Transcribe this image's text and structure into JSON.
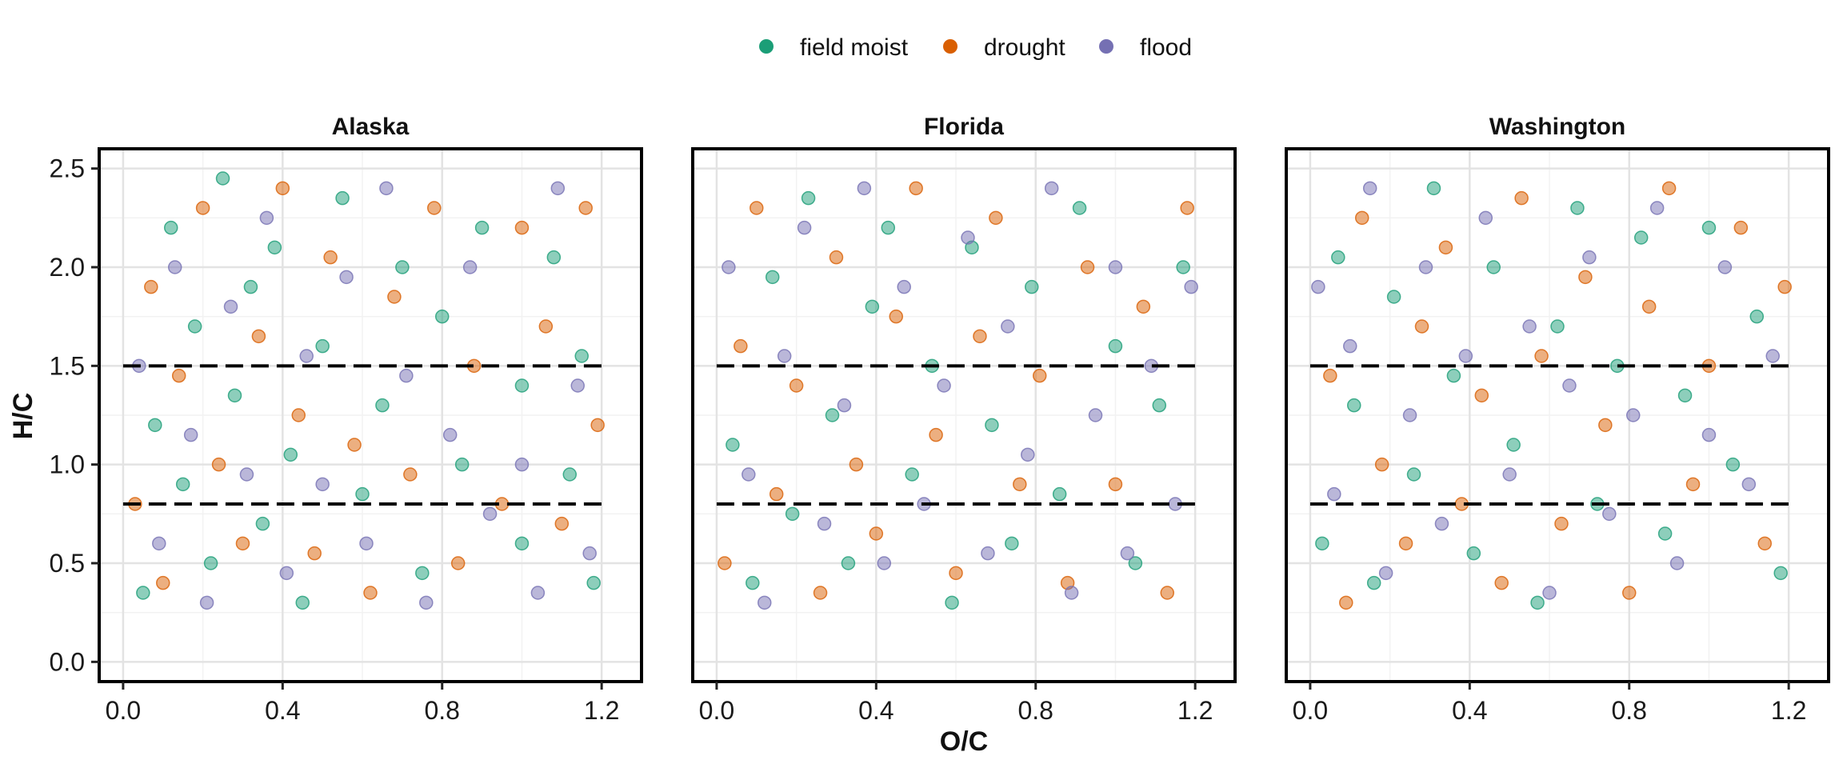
{
  "chart_data": {
    "type": "scatter",
    "xlabel": "O/C",
    "ylabel": "H/C",
    "xlim": [
      -0.06,
      1.3
    ],
    "ylim": [
      -0.1,
      2.6
    ],
    "x_ticks": [
      0.0,
      0.4,
      0.8,
      1.2
    ],
    "x_tick_labels": [
      "0.0",
      "0.4",
      "0.8",
      "1.2"
    ],
    "y_ticks": [
      0.0,
      0.5,
      1.0,
      1.5,
      2.0,
      2.5
    ],
    "y_tick_labels": [
      "0.0",
      "0.5",
      "1.0",
      "1.5",
      "2.0",
      "2.5"
    ],
    "grid": true,
    "legend_position": "top",
    "reference_lines": [
      {
        "y": 1.5,
        "x_range": [
          0.0,
          1.2
        ],
        "style": "dashed",
        "color": "#000000"
      },
      {
        "y": 0.8,
        "x_range": [
          0.0,
          1.2
        ],
        "style": "dashed",
        "color": "#000000"
      }
    ],
    "series": [
      {
        "name": "field moist",
        "color": "#1b9e77"
      },
      {
        "name": "drought",
        "color": "#d95f02"
      },
      {
        "name": "flood",
        "color": "#7570b3"
      }
    ],
    "panels": [
      {
        "title": "Alaska",
        "points": [
          [
            0.05,
            0.35,
            0
          ],
          [
            0.08,
            1.2,
            0
          ],
          [
            0.12,
            2.2,
            0
          ],
          [
            0.15,
            0.9,
            0
          ],
          [
            0.18,
            1.7,
            0
          ],
          [
            0.22,
            0.5,
            0
          ],
          [
            0.25,
            2.45,
            0
          ],
          [
            0.28,
            1.35,
            0
          ],
          [
            0.32,
            1.9,
            0
          ],
          [
            0.35,
            0.7,
            0
          ],
          [
            0.38,
            2.1,
            0
          ],
          [
            0.42,
            1.05,
            0
          ],
          [
            0.45,
            0.3,
            0
          ],
          [
            0.5,
            1.6,
            0
          ],
          [
            0.55,
            2.35,
            0
          ],
          [
            0.6,
            0.85,
            0
          ],
          [
            0.65,
            1.3,
            0
          ],
          [
            0.7,
            2.0,
            0
          ],
          [
            0.75,
            0.45,
            0
          ],
          [
            0.8,
            1.75,
            0
          ],
          [
            0.85,
            1.0,
            0
          ],
          [
            0.9,
            2.2,
            0
          ],
          [
            1.0,
            1.4,
            0
          ],
          [
            1.0,
            0.6,
            0
          ],
          [
            1.08,
            2.05,
            0
          ],
          [
            1.12,
            0.95,
            0
          ],
          [
            1.15,
            1.55,
            0
          ],
          [
            1.18,
            0.4,
            0
          ],
          [
            0.03,
            0.8,
            1
          ],
          [
            0.07,
            1.9,
            1
          ],
          [
            0.1,
            0.4,
            1
          ],
          [
            0.14,
            1.45,
            1
          ],
          [
            0.2,
            2.3,
            1
          ],
          [
            0.24,
            1.0,
            1
          ],
          [
            0.3,
            0.6,
            1
          ],
          [
            0.34,
            1.65,
            1
          ],
          [
            0.4,
            2.4,
            1
          ],
          [
            0.44,
            1.25,
            1
          ],
          [
            0.48,
            0.55,
            1
          ],
          [
            0.52,
            2.05,
            1
          ],
          [
            0.58,
            1.1,
            1
          ],
          [
            0.62,
            0.35,
            1
          ],
          [
            0.68,
            1.85,
            1
          ],
          [
            0.72,
            0.95,
            1
          ],
          [
            0.78,
            2.3,
            1
          ],
          [
            0.84,
            0.5,
            1
          ],
          [
            0.88,
            1.5,
            1
          ],
          [
            0.95,
            0.8,
            1
          ],
          [
            1.0,
            2.2,
            1
          ],
          [
            1.06,
            1.7,
            1
          ],
          [
            1.1,
            0.7,
            1
          ],
          [
            1.16,
            2.3,
            1
          ],
          [
            1.19,
            1.2,
            1
          ],
          [
            0.04,
            1.5,
            2
          ],
          [
            0.09,
            0.6,
            2
          ],
          [
            0.13,
            2.0,
            2
          ],
          [
            0.17,
            1.15,
            2
          ],
          [
            0.21,
            0.3,
            2
          ],
          [
            0.27,
            1.8,
            2
          ],
          [
            0.31,
            0.95,
            2
          ],
          [
            0.36,
            2.25,
            2
          ],
          [
            0.41,
            0.45,
            2
          ],
          [
            0.46,
            1.55,
            2
          ],
          [
            0.5,
            0.9,
            2
          ],
          [
            0.56,
            1.95,
            2
          ],
          [
            0.61,
            0.6,
            2
          ],
          [
            0.66,
            2.4,
            2
          ],
          [
            0.71,
            1.45,
            2
          ],
          [
            0.76,
            0.3,
            2
          ],
          [
            0.82,
            1.15,
            2
          ],
          [
            0.87,
            2.0,
            2
          ],
          [
            0.92,
            0.75,
            2
          ],
          [
            1.0,
            1.0,
            2
          ],
          [
            1.04,
            0.35,
            2
          ],
          [
            1.09,
            2.4,
            2
          ],
          [
            1.14,
            1.4,
            2
          ],
          [
            1.17,
            0.55,
            2
          ]
        ]
      },
      {
        "title": "Florida",
        "points": [
          [
            0.04,
            1.1,
            0
          ],
          [
            0.09,
            0.4,
            0
          ],
          [
            0.14,
            1.95,
            0
          ],
          [
            0.19,
            0.75,
            0
          ],
          [
            0.23,
            2.35,
            0
          ],
          [
            0.29,
            1.25,
            0
          ],
          [
            0.33,
            0.5,
            0
          ],
          [
            0.39,
            1.8,
            0
          ],
          [
            0.43,
            2.2,
            0
          ],
          [
            0.49,
            0.95,
            0
          ],
          [
            0.54,
            1.5,
            0
          ],
          [
            0.59,
            0.3,
            0
          ],
          [
            0.64,
            2.1,
            0
          ],
          [
            0.69,
            1.2,
            0
          ],
          [
            0.74,
            0.6,
            0
          ],
          [
            0.79,
            1.9,
            0
          ],
          [
            0.86,
            0.85,
            0
          ],
          [
            0.91,
            2.3,
            0
          ],
          [
            1.0,
            1.6,
            0
          ],
          [
            1.05,
            0.5,
            0
          ],
          [
            1.11,
            1.3,
            0
          ],
          [
            1.17,
            2.0,
            0
          ],
          [
            0.02,
            0.5,
            1
          ],
          [
            0.06,
            1.6,
            1
          ],
          [
            0.1,
            2.3,
            1
          ],
          [
            0.15,
            0.85,
            1
          ],
          [
            0.2,
            1.4,
            1
          ],
          [
            0.26,
            0.35,
            1
          ],
          [
            0.3,
            2.05,
            1
          ],
          [
            0.35,
            1.0,
            1
          ],
          [
            0.4,
            0.65,
            1
          ],
          [
            0.45,
            1.75,
            1
          ],
          [
            0.5,
            2.4,
            1
          ],
          [
            0.55,
            1.15,
            1
          ],
          [
            0.6,
            0.45,
            1
          ],
          [
            0.66,
            1.65,
            1
          ],
          [
            0.7,
            2.25,
            1
          ],
          [
            0.76,
            0.9,
            1
          ],
          [
            0.81,
            1.45,
            1
          ],
          [
            0.88,
            0.4,
            1
          ],
          [
            0.93,
            2.0,
            1
          ],
          [
            1.0,
            0.9,
            1
          ],
          [
            1.07,
            1.8,
            1
          ],
          [
            1.13,
            0.35,
            1
          ],
          [
            1.18,
            2.3,
            1
          ],
          [
            0.03,
            2.0,
            2
          ],
          [
            0.08,
            0.95,
            2
          ],
          [
            0.12,
            0.3,
            2
          ],
          [
            0.17,
            1.55,
            2
          ],
          [
            0.22,
            2.2,
            2
          ],
          [
            0.27,
            0.7,
            2
          ],
          [
            0.32,
            1.3,
            2
          ],
          [
            0.37,
            2.4,
            2
          ],
          [
            0.42,
            0.5,
            2
          ],
          [
            0.47,
            1.9,
            2
          ],
          [
            0.52,
            0.8,
            2
          ],
          [
            0.57,
            1.4,
            2
          ],
          [
            0.63,
            2.15,
            2
          ],
          [
            0.68,
            0.55,
            2
          ],
          [
            0.73,
            1.7,
            2
          ],
          [
            0.78,
            1.05,
            2
          ],
          [
            0.84,
            2.4,
            2
          ],
          [
            0.89,
            0.35,
            2
          ],
          [
            0.95,
            1.25,
            2
          ],
          [
            1.0,
            2.0,
            2
          ],
          [
            1.03,
            0.55,
            2
          ],
          [
            1.09,
            1.5,
            2
          ],
          [
            1.15,
            0.8,
            2
          ],
          [
            1.19,
            1.9,
            2
          ]
        ]
      },
      {
        "title": "Washington",
        "points": [
          [
            0.03,
            0.6,
            0
          ],
          [
            0.07,
            2.05,
            0
          ],
          [
            0.11,
            1.3,
            0
          ],
          [
            0.16,
            0.4,
            0
          ],
          [
            0.21,
            1.85,
            0
          ],
          [
            0.26,
            0.95,
            0
          ],
          [
            0.31,
            2.4,
            0
          ],
          [
            0.36,
            1.45,
            0
          ],
          [
            0.41,
            0.55,
            0
          ],
          [
            0.46,
            2.0,
            0
          ],
          [
            0.51,
            1.1,
            0
          ],
          [
            0.57,
            0.3,
            0
          ],
          [
            0.62,
            1.7,
            0
          ],
          [
            0.67,
            2.3,
            0
          ],
          [
            0.72,
            0.8,
            0
          ],
          [
            0.77,
            1.5,
            0
          ],
          [
            0.83,
            2.15,
            0
          ],
          [
            0.89,
            0.65,
            0
          ],
          [
            0.94,
            1.35,
            0
          ],
          [
            1.0,
            2.2,
            0
          ],
          [
            1.06,
            1.0,
            0
          ],
          [
            1.12,
            1.75,
            0
          ],
          [
            1.18,
            0.45,
            0
          ],
          [
            0.05,
            1.45,
            1
          ],
          [
            0.09,
            0.3,
            1
          ],
          [
            0.13,
            2.25,
            1
          ],
          [
            0.18,
            1.0,
            1
          ],
          [
            0.24,
            0.6,
            1
          ],
          [
            0.28,
            1.7,
            1
          ],
          [
            0.34,
            2.1,
            1
          ],
          [
            0.38,
            0.8,
            1
          ],
          [
            0.43,
            1.35,
            1
          ],
          [
            0.48,
            0.4,
            1
          ],
          [
            0.53,
            2.35,
            1
          ],
          [
            0.58,
            1.55,
            1
          ],
          [
            0.63,
            0.7,
            1
          ],
          [
            0.69,
            1.95,
            1
          ],
          [
            0.74,
            1.2,
            1
          ],
          [
            0.8,
            0.35,
            1
          ],
          [
            0.85,
            1.8,
            1
          ],
          [
            0.9,
            2.4,
            1
          ],
          [
            0.96,
            0.9,
            1
          ],
          [
            1.0,
            1.5,
            1
          ],
          [
            1.08,
            2.2,
            1
          ],
          [
            1.14,
            0.6,
            1
          ],
          [
            1.19,
            1.9,
            1
          ],
          [
            0.02,
            1.9,
            2
          ],
          [
            0.06,
            0.85,
            2
          ],
          [
            0.1,
            1.6,
            2
          ],
          [
            0.15,
            2.4,
            2
          ],
          [
            0.19,
            0.45,
            2
          ],
          [
            0.25,
            1.25,
            2
          ],
          [
            0.29,
            2.0,
            2
          ],
          [
            0.33,
            0.7,
            2
          ],
          [
            0.39,
            1.55,
            2
          ],
          [
            0.44,
            2.25,
            2
          ],
          [
            0.5,
            0.95,
            2
          ],
          [
            0.55,
            1.7,
            2
          ],
          [
            0.6,
            0.35,
            2
          ],
          [
            0.65,
            1.4,
            2
          ],
          [
            0.7,
            2.05,
            2
          ],
          [
            0.75,
            0.75,
            2
          ],
          [
            0.81,
            1.25,
            2
          ],
          [
            0.87,
            2.3,
            2
          ],
          [
            0.92,
            0.5,
            2
          ],
          [
            1.0,
            1.15,
            2
          ],
          [
            1.04,
            2.0,
            2
          ],
          [
            1.1,
            0.9,
            2
          ],
          [
            1.16,
            1.55,
            2
          ]
        ]
      }
    ]
  }
}
